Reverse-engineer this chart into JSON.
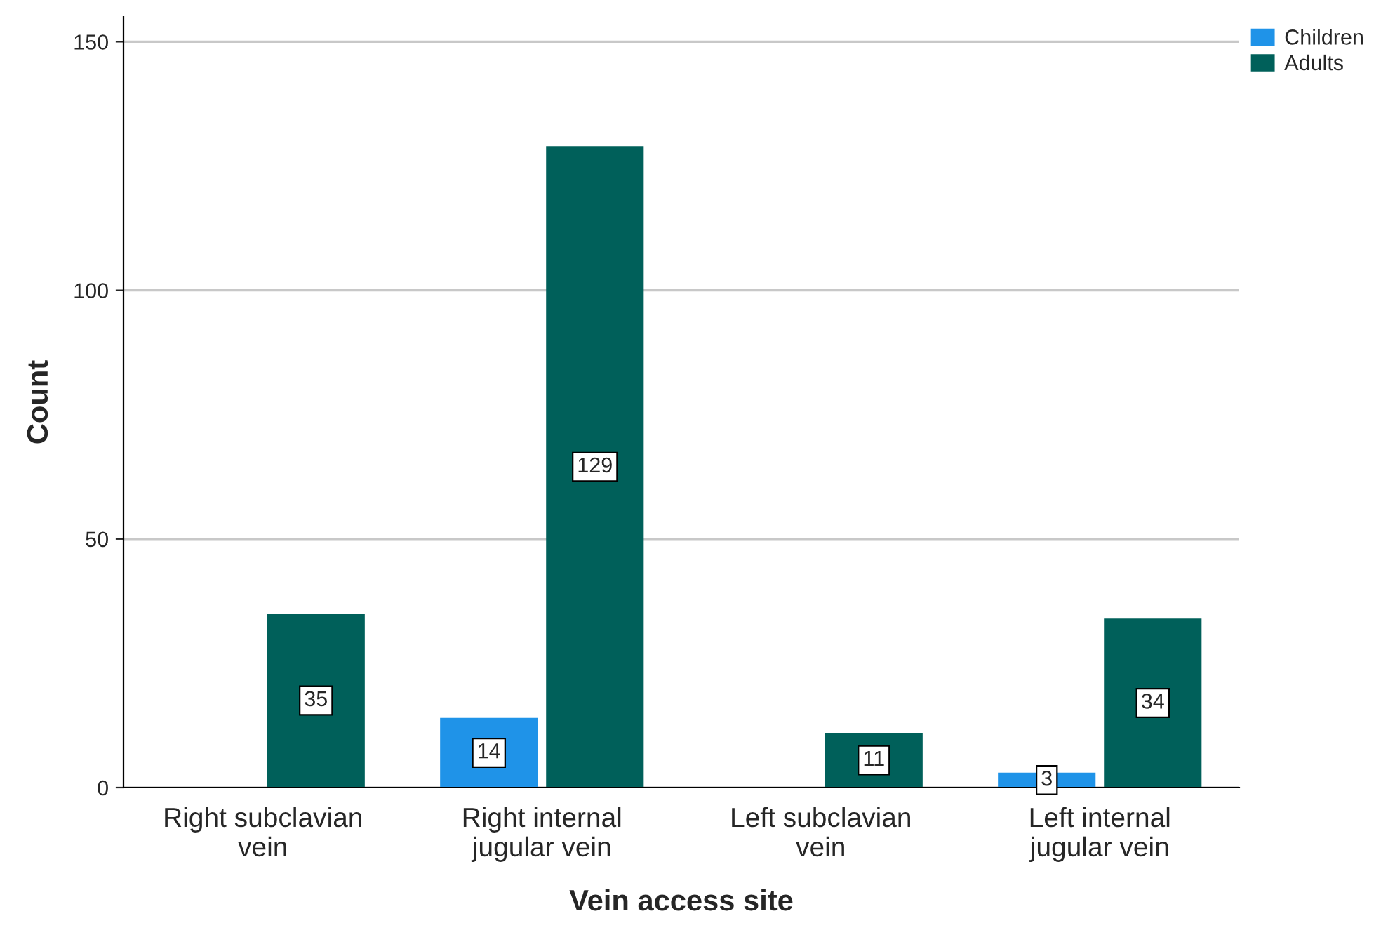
{
  "chart_data": {
    "type": "bar",
    "xlabel": "Vein access site",
    "ylabel": "Count",
    "categories": [
      "Right subclavian\nvein",
      "Right internal\njugular vein",
      "Left subclavian\nvein",
      "Left internal\njugular vein"
    ],
    "series": [
      {
        "name": "Children",
        "color": "#1f93e8",
        "values": [
          null,
          14,
          null,
          3
        ]
      },
      {
        "name": "Adults",
        "color": "#00605a",
        "values": [
          35,
          129,
          11,
          34
        ]
      }
    ],
    "ylim": [
      0,
      155
    ],
    "yticks": [
      0,
      50,
      100,
      150
    ],
    "grid": "y",
    "legend": "top right",
    "data_labels": true
  }
}
